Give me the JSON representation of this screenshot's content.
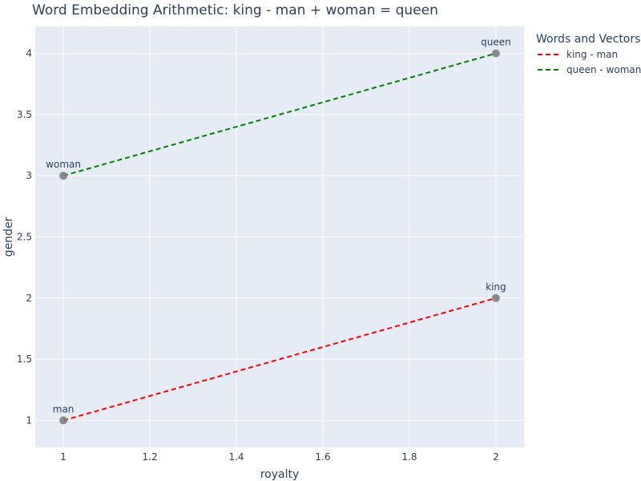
{
  "chart_data": {
    "type": "scatter",
    "title": "Word Embedding Arithmetic: king - man + woman = queen",
    "xlabel": "royalty",
    "ylabel": "gender",
    "xlim": [
      0.935,
      2.065
    ],
    "ylim": [
      0.78,
      4.22
    ],
    "xticks": [
      1,
      1.2,
      1.4,
      1.6,
      1.8,
      2
    ],
    "xtick_labels": [
      "1",
      "1.2",
      "1.4",
      "1.6",
      "1.8",
      "2"
    ],
    "yticks": [
      1,
      1.5,
      2,
      2.5,
      3,
      3.5,
      4
    ],
    "ytick_labels": [
      "1",
      "1.5",
      "2",
      "2.5",
      "3",
      "3.5",
      "4"
    ],
    "grid": true,
    "legend_title": "Words and Vectors",
    "legend_position": "right",
    "points": [
      {
        "word": "man",
        "x": 1,
        "y": 1
      },
      {
        "word": "king",
        "x": 2,
        "y": 2
      },
      {
        "word": "woman",
        "x": 1,
        "y": 3
      },
      {
        "word": "queen",
        "x": 2,
        "y": 4
      }
    ],
    "point_color": "#808080",
    "series": [
      {
        "name": "king - man",
        "x": [
          1,
          2
        ],
        "y": [
          1,
          2
        ],
        "color": "#ff0000",
        "dash": "dashed"
      },
      {
        "name": "queen - woman",
        "x": [
          1,
          2
        ],
        "y": [
          3,
          4
        ],
        "color": "#008000",
        "dash": "dashed"
      }
    ],
    "plot_background": "#e5ecf6"
  }
}
